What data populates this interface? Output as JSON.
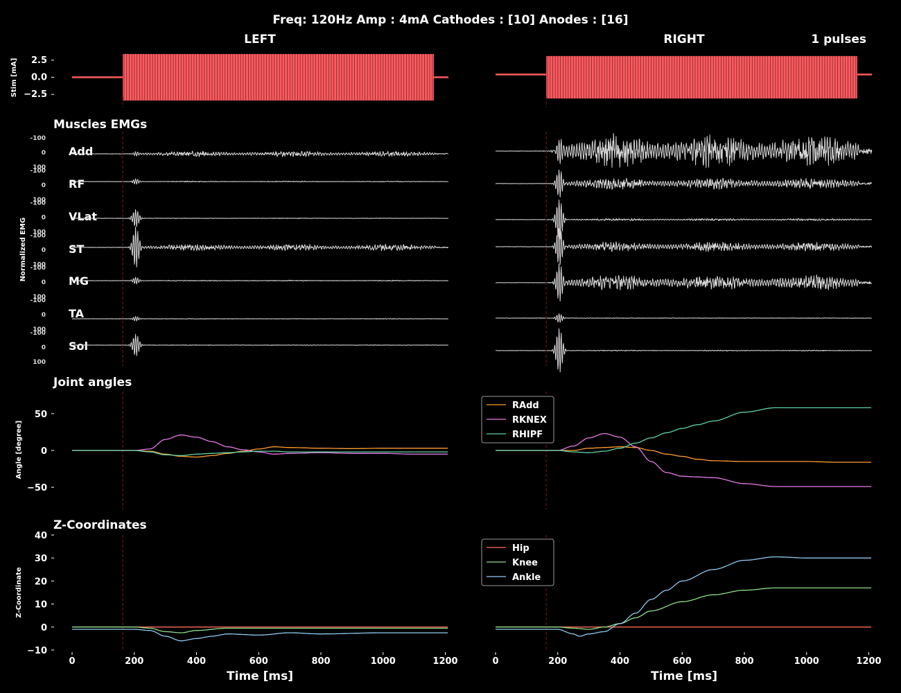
{
  "figure": {
    "title": "Freq: 120Hz  Amp : 4mA  Cathodes : [10]  Anodes : [16]",
    "left_label": "LEFT",
    "right_label": "RIGHT",
    "pulses_label": "1 pulses",
    "emg_section_title": "Muscles EMGs",
    "joint_section_title": "Joint angles",
    "z_section_title": "Z-Coordinates",
    "stim_ylabel": "Stim [mA]",
    "emg_ylabel": "Normalized EMG",
    "joint_ylabel": "Angle [degree]",
    "z_ylabel": "Z-Coordinate",
    "xlabel": "Time [ms]",
    "colors": {
      "background": "#000000",
      "stim": "#ff5a5f",
      "emg": "#d8d8d8",
      "text": "#ffffff",
      "onset_line": "#5a1010"
    }
  },
  "chart_data": [
    {
      "id": "stim",
      "type": "line",
      "ylabel": "Stim [mA]",
      "yticks": [
        "2.5",
        "0.0",
        "−2.5"
      ],
      "ytick_values": [
        2.5,
        0.0,
        -2.5
      ],
      "ylim": [
        -4.2,
        4.2
      ],
      "xlim": [
        0,
        1210
      ],
      "stim_onset_ms": 163,
      "left_stim": {
        "start_ms": 163,
        "end_ms": 1163,
        "baseline_mA": 0.0,
        "amplitude_mA": 3.4
      },
      "right_stim": {
        "start_ms": 163,
        "end_ms": 1163,
        "baseline_mA": 0.4,
        "amplitude_mA": 3.1
      }
    },
    {
      "id": "emg",
      "type": "line",
      "ylabel": "Normalized EMG",
      "muscles": [
        "Add",
        "RF",
        "VLat",
        "ST",
        "MG",
        "TA",
        "Sol"
      ],
      "tick_labels": {
        "upper": "-100",
        "zero": "0",
        "lower": "100"
      },
      "left_burst_amplitude": [
        0.08,
        0.12,
        0.4,
        0.9,
        0.15,
        0.1,
        0.5
      ],
      "left_sustained_amplitude": [
        0.12,
        0.02,
        0.01,
        0.15,
        0.02,
        0.01,
        0.01
      ],
      "right_burst_amplitude": [
        0.45,
        0.6,
        0.9,
        0.8,
        0.8,
        0.2,
        1.0
      ],
      "right_sustained_amplitude": [
        0.75,
        0.25,
        0.05,
        0.22,
        0.35,
        0.01,
        0.02
      ],
      "right_baseline_offset": [
        0.0,
        0.1,
        0.1,
        0.0,
        0.1,
        0.0,
        0.1
      ]
    },
    {
      "id": "joint_angles",
      "type": "line",
      "ylabel": "Angle [degree]",
      "yticks": [
        "50",
        "0",
        "−50"
      ],
      "ytick_values": [
        50,
        0,
        -50
      ],
      "ylim": [
        -80,
        80
      ],
      "xlim": [
        0,
        1210
      ],
      "legend": [
        "RAdd",
        "RKNEX",
        "RHIPF"
      ],
      "series_colors": [
        "#ff9d2e",
        "#e67ae6",
        "#5fd3a6"
      ],
      "left": [
        {
          "x": [
            0,
            200,
            250,
            300,
            350,
            400,
            450,
            500,
            550,
            600,
            650,
            700,
            800,
            900,
            1000,
            1100,
            1210
          ],
          "y": [
            0,
            0,
            -1,
            -5,
            -8,
            -9,
            -7,
            -4,
            -1,
            2,
            5,
            4,
            3,
            2.5,
            3,
            3,
            3
          ]
        },
        {
          "x": [
            0,
            200,
            250,
            300,
            350,
            400,
            450,
            500,
            550,
            600,
            650,
            700,
            800,
            900,
            1000,
            1100,
            1210
          ],
          "y": [
            0,
            0,
            2,
            15,
            21,
            18,
            12,
            5,
            1,
            -2,
            -5,
            -4,
            -3,
            -4,
            -4,
            -5,
            -5
          ]
        },
        {
          "x": [
            0,
            200,
            250,
            300,
            350,
            400,
            450,
            500,
            550,
            600,
            650,
            700,
            800,
            900,
            1000,
            1100,
            1210
          ],
          "y": [
            0,
            0,
            -2,
            -6,
            -7,
            -5,
            -4,
            -3,
            -2,
            -1,
            -1,
            -2,
            -2,
            -2,
            -2,
            -2,
            -2
          ]
        }
      ],
      "right": [
        {
          "x": [
            0,
            200,
            250,
            300,
            350,
            400,
            450,
            500,
            550,
            600,
            650,
            700,
            800,
            900,
            1000,
            1100,
            1210
          ],
          "y": [
            0,
            0,
            0,
            3,
            4,
            5,
            4,
            0,
            -5,
            -8,
            -12,
            -14,
            -15,
            -15,
            -15,
            -16,
            -16
          ]
        },
        {
          "x": [
            0,
            200,
            250,
            300,
            350,
            400,
            450,
            500,
            550,
            600,
            650,
            700,
            800,
            900,
            1000,
            1100,
            1210
          ],
          "y": [
            0,
            0,
            6,
            17,
            23,
            18,
            5,
            -15,
            -30,
            -35,
            -36,
            -37,
            -45,
            -49,
            -49,
            -49,
            -49
          ]
        },
        {
          "x": [
            0,
            200,
            250,
            300,
            350,
            400,
            450,
            500,
            550,
            600,
            650,
            700,
            800,
            900,
            1000,
            1100,
            1210
          ],
          "y": [
            0,
            0,
            -2,
            -3,
            -1,
            3,
            10,
            17,
            24,
            30,
            35,
            40,
            52,
            58,
            58,
            58,
            58
          ]
        }
      ]
    },
    {
      "id": "z_coordinates",
      "type": "line",
      "ylabel": "Z-Coordinate",
      "xlabel": "Time [ms]",
      "yticks": [
        "40",
        "30",
        "20",
        "10",
        "0",
        "−10"
      ],
      "ytick_values": [
        40,
        30,
        20,
        10,
        0,
        -10
      ],
      "ylim": [
        -10,
        40
      ],
      "xticks": [
        "0",
        "200",
        "400",
        "600",
        "800",
        "1000",
        "1200"
      ],
      "xtick_values": [
        0,
        200,
        400,
        600,
        800,
        1000,
        1200
      ],
      "xlim": [
        0,
        1210
      ],
      "legend": [
        "Hip",
        "Knee",
        "Ankle"
      ],
      "series_colors": [
        "#ff6b5a",
        "#8de08a",
        "#8ecbf2"
      ],
      "left": [
        {
          "x": [
            0,
            200,
            300,
            400,
            600,
            800,
            1000,
            1210
          ],
          "y": [
            0,
            0,
            0,
            0,
            0,
            0,
            0,
            0
          ]
        },
        {
          "x": [
            0,
            200,
            250,
            300,
            350,
            400,
            500,
            600,
            800,
            1000,
            1210
          ],
          "y": [
            0,
            0,
            -0.5,
            -2,
            -2.5,
            -1.5,
            -0.5,
            -0.5,
            -0.5,
            -0.5,
            -0.5
          ]
        },
        {
          "x": [
            0,
            200,
            250,
            300,
            350,
            400,
            450,
            500,
            600,
            700,
            800,
            1000,
            1210
          ],
          "y": [
            -1,
            -1,
            -1.5,
            -4,
            -6,
            -5,
            -4,
            -3,
            -3.5,
            -2.5,
            -3,
            -2.5,
            -2.5
          ]
        }
      ],
      "right": [
        {
          "x": [
            0,
            200,
            300,
            400,
            600,
            800,
            1000,
            1210
          ],
          "y": [
            0,
            0,
            0,
            0,
            0,
            0,
            0,
            0
          ]
        },
        {
          "x": [
            0,
            200,
            250,
            300,
            350,
            400,
            450,
            500,
            600,
            700,
            800,
            900,
            1000,
            1100,
            1210
          ],
          "y": [
            0,
            0,
            -0.5,
            -1,
            0,
            1.5,
            4,
            7,
            11,
            14,
            16,
            17,
            17,
            17,
            17
          ]
        },
        {
          "x": [
            0,
            200,
            250,
            270,
            300,
            350,
            400,
            450,
            500,
            550,
            600,
            700,
            800,
            900,
            1000,
            1100,
            1210
          ],
          "y": [
            -1,
            -1,
            -3,
            -4,
            -3,
            -2,
            1.5,
            6,
            12,
            16,
            20,
            25,
            29,
            30.5,
            30,
            30,
            30
          ]
        }
      ]
    }
  ]
}
